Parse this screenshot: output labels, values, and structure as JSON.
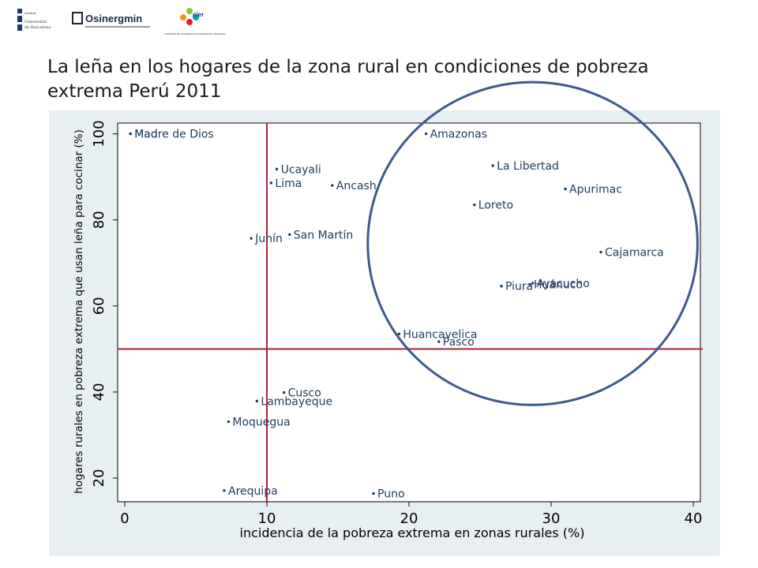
{
  "logos": {
    "ub": [
      "Universitat",
      "de Barcelona"
    ],
    "osinergmin": "Osinergmin",
    "cier": "cier",
    "cier_caption": "COMISIÓN DE INTEGRACIÓN ENERGÉTICA REGIONAL"
  },
  "slide": {
    "title_line1": "La leña en los hogares de la zona rural en condiciones de pobreza",
    "title_line2": "extrema Perú 2011"
  },
  "colors": {
    "panel_bg": "#e8eff2",
    "plot_bg": "#ffffff",
    "reference_line": "#a8263a",
    "ellipse": "#3d5a8c",
    "marker": "#1f3b5c"
  },
  "chart_data": {
    "type": "scatter",
    "xlabel": "incidencia de la pobreza extrema en zonas rurales (%)",
    "ylabel": "hogares rurales en pobreza extrema que usan leña para cocinar (%)",
    "xlim": [
      -0.5,
      40.5
    ],
    "ylim": [
      14.5,
      102.5
    ],
    "xticks": [
      0,
      10,
      20,
      30,
      40
    ],
    "yticks": [
      20,
      40,
      60,
      80,
      100
    ],
    "grid": false,
    "reference_lines": {
      "x": 10,
      "y": 50
    },
    "highlight_ellipse": {
      "cx": 28.7,
      "cy": 74.5,
      "rx": 11.6,
      "ry": 37.5
    },
    "points": [
      {
        "label": "Mad",
        "x": 0.4,
        "y": 100
      },
      {
        "label": "Madre de Dios",
        "x": 0.4,
        "y": 100
      },
      {
        "label": "Amazonas",
        "x": 21.2,
        "y": 100
      },
      {
        "label": "La Libertad",
        "x": 25.9,
        "y": 92.6
      },
      {
        "label": "Ucayali",
        "x": 10.7,
        "y": 91.8
      },
      {
        "label": "Lima",
        "x": 10.3,
        "y": 88.6
      },
      {
        "label": "Ancash",
        "x": 14.6,
        "y": 88.0
      },
      {
        "label": "Apurimac",
        "x": 31.0,
        "y": 87.2
      },
      {
        "label": "Loreto",
        "x": 24.6,
        "y": 83.5
      },
      {
        "label": "San Martín",
        "x": 11.6,
        "y": 76.6
      },
      {
        "label": "Junín",
        "x": 8.9,
        "y": 75.7
      },
      {
        "label": "Cajamarca",
        "x": 33.5,
        "y": 72.5
      },
      {
        "label": "Ayacucho",
        "x": 28.7,
        "y": 65.3
      },
      {
        "label": "Huánuco",
        "x": 28.5,
        "y": 65.0
      },
      {
        "label": "Piura",
        "x": 26.5,
        "y": 64.6
      },
      {
        "label": "Huancavelica",
        "x": 19.3,
        "y": 53.5
      },
      {
        "label": "Pasco",
        "x": 22.1,
        "y": 51.7
      },
      {
        "label": "Cusco",
        "x": 11.2,
        "y": 39.9
      },
      {
        "label": "Lambayeque",
        "x": 9.3,
        "y": 37.9
      },
      {
        "label": "Moquegua",
        "x": 7.3,
        "y": 33.1
      },
      {
        "label": "Arequipa",
        "x": 7.0,
        "y": 17.1
      },
      {
        "label": "Puno",
        "x": 17.5,
        "y": 16.4
      }
    ]
  }
}
